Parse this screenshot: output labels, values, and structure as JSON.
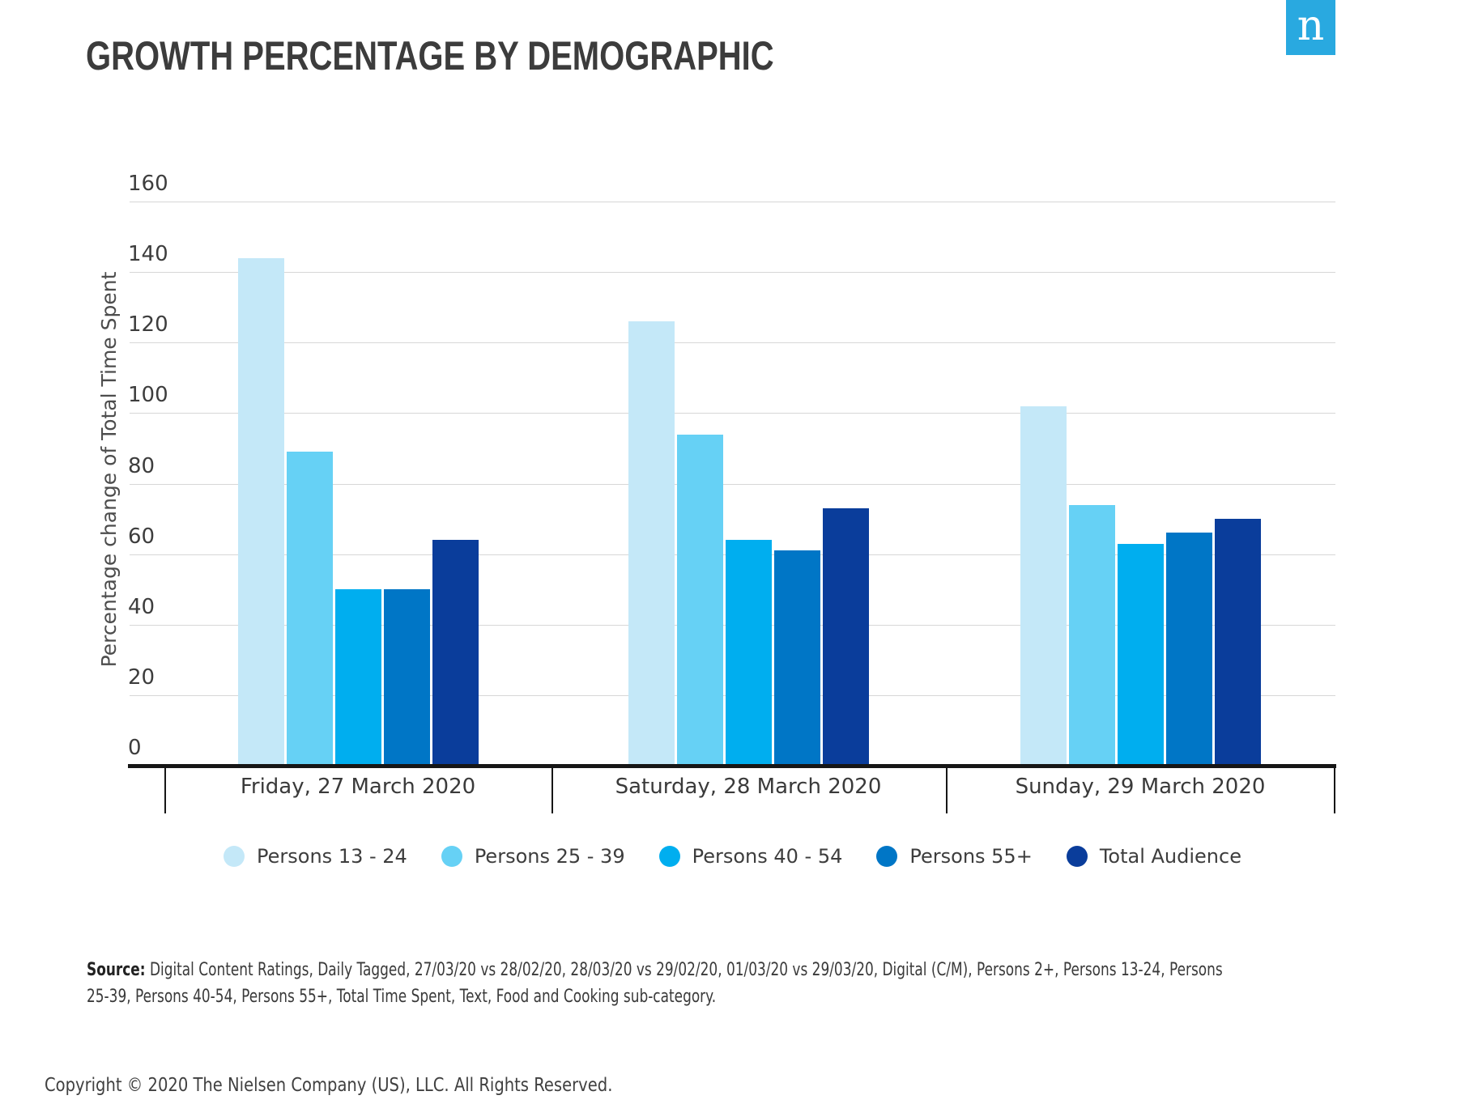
{
  "header": {
    "title": "GROWTH PERCENTAGE BY DEMOGRAPHIC",
    "logo_letter": "n",
    "logo_color": "#29a9e0"
  },
  "chart_data": {
    "type": "bar",
    "title": "GROWTH PERCENTAGE BY DEMOGRAPHIC",
    "xlabel": "",
    "ylabel": "Percentage change of Total Time Spent",
    "ylim": [
      0,
      160
    ],
    "yticks": [
      0,
      20,
      40,
      60,
      80,
      100,
      120,
      140,
      160
    ],
    "grid": true,
    "legend_position": "bottom",
    "categories": [
      "Friday, 27 March 2020",
      "Saturday, 28 March 2020",
      "Sunday, 29 March 2020"
    ],
    "series": [
      {
        "name": "Persons 13 - 24",
        "color": "#c4e8f8",
        "values": [
          144,
          126,
          102
        ]
      },
      {
        "name": "Persons 25 - 39",
        "color": "#66d1f5",
        "values": [
          89,
          94,
          74
        ]
      },
      {
        "name": "Persons 40 - 54",
        "color": "#00aeef",
        "values": [
          50,
          64,
          63
        ]
      },
      {
        "name": "Persons 55+",
        "color": "#0076c6",
        "values": [
          50,
          61,
          66
        ]
      },
      {
        "name": "Total Audience",
        "color": "#0a3d9b",
        "values": [
          64,
          73,
          70
        ]
      }
    ]
  },
  "footer": {
    "source_label": "Source:",
    "source_line1": " Digital Content Ratings, Daily Tagged, 27/03/20 vs 28/02/20, 28/03/20 vs 29/02/20,  01/03/20 vs 29/03/20, Digital (C/M), Persons 2+, Persons 13-24, Persons",
    "source_line2": "25-39, Persons 40-54, Persons 55+, Total Time Spent, Text, Food and Cooking sub-category.",
    "copyright": "Copyright © 2020 The Nielsen Company (US), LLC. All Rights Reserved."
  }
}
